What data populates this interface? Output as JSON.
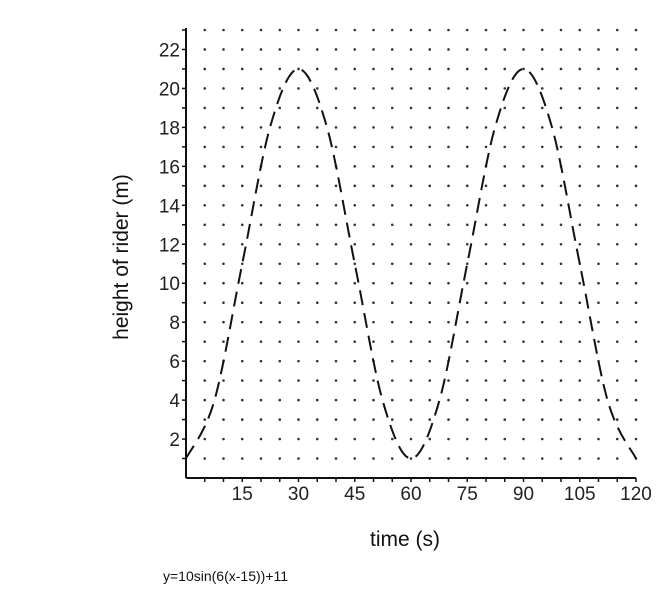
{
  "chart_data": {
    "type": "line",
    "xlabel": "time (s)",
    "ylabel": "height of rider (m)",
    "xlim": [
      0,
      120
    ],
    "ylim": [
      0,
      23
    ],
    "x_ticks": [
      15,
      30,
      45,
      60,
      75,
      90,
      105,
      120
    ],
    "y_ticks": [
      2,
      4,
      6,
      8,
      10,
      12,
      14,
      16,
      18,
      20,
      22
    ],
    "grid": "dotted",
    "line_style": "dashed",
    "series": [
      {
        "x": [
          0,
          7.5,
          15,
          22.5,
          30,
          37.5,
          45,
          52.5,
          60,
          67.5,
          75,
          82.5,
          90,
          97.5,
          105,
          112.5,
          120
        ],
        "values": [
          1,
          3.93,
          11,
          18.07,
          21,
          18.07,
          11,
          3.93,
          1,
          3.93,
          11,
          18.07,
          21,
          18.07,
          11,
          3.93,
          1
        ]
      }
    ],
    "colors": {
      "line": "#111111",
      "axis": "#111111",
      "grid": "#333333"
    }
  },
  "caption": "y=10sin(6(x-15))+11"
}
